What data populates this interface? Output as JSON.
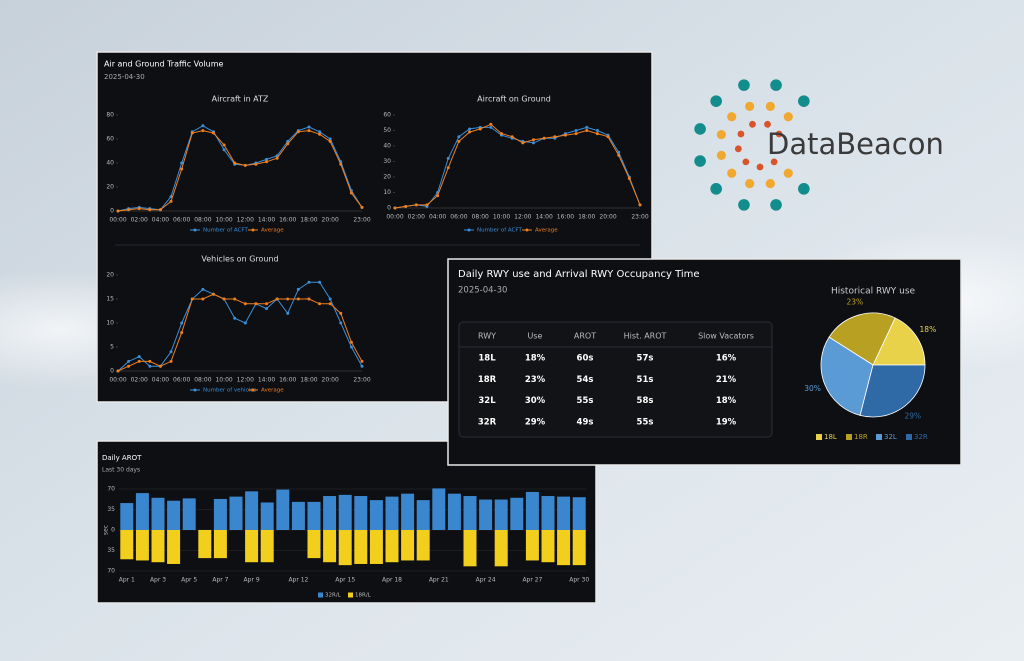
{
  "logo": {
    "text": "DataBeacon"
  },
  "traffic_panel": {
    "title": "Air and Ground Traffic Volume",
    "date": "2025-04-30"
  },
  "rwy_panel": {
    "title": "Daily RWY use and Arrival RWY Occupancy Time",
    "date": "2025-04-30",
    "table": {
      "columns": [
        "RWY",
        "Use",
        "AROT",
        "Hist. AROT",
        "Slow Vacators"
      ],
      "rows": [
        [
          "18L",
          "18%",
          "60s",
          "57s",
          "16%"
        ],
        [
          "18R",
          "23%",
          "54s",
          "51s",
          "21%"
        ],
        [
          "32L",
          "30%",
          "55s",
          "58s",
          "18%"
        ],
        [
          "32R",
          "29%",
          "49s",
          "55s",
          "19%"
        ]
      ]
    }
  },
  "arot_panel": {
    "title": "Daily AROT",
    "subtitle": "Last 30 days"
  },
  "chart_data": [
    {
      "type": "line",
      "title": "Aircraft in ATZ",
      "categories": [
        "00:00",
        null,
        "02:00",
        null,
        "04:00",
        null,
        "06:00",
        null,
        "08:00",
        null,
        "10:00",
        null,
        "12:00",
        null,
        "14:00",
        null,
        "16:00",
        null,
        "18:00",
        null,
        "20:00",
        null,
        null,
        "23:00"
      ],
      "series": [
        {
          "name": "Number of ACFT",
          "color": "#3b8fd9",
          "values": [
            0,
            2,
            3,
            2,
            1,
            12,
            40,
            66,
            71,
            66,
            51,
            39,
            38,
            40,
            43,
            46,
            58,
            67,
            70,
            66,
            60,
            41,
            17,
            3
          ]
        },
        {
          "name": "Average",
          "color": "#f07f1e",
          "values": [
            0,
            1,
            2,
            1,
            1,
            8,
            35,
            65,
            67,
            65,
            55,
            40,
            38,
            39,
            41,
            44,
            56,
            66,
            67,
            64,
            58,
            39,
            15,
            3
          ]
        }
      ],
      "ylim": [
        0,
        80
      ],
      "yticks": [
        0,
        20,
        40,
        60,
        80
      ]
    },
    {
      "type": "line",
      "title": "Aircraft on Ground",
      "categories": [
        "00:00",
        null,
        "02:00",
        null,
        "04:00",
        null,
        "06:00",
        null,
        "08:00",
        null,
        "10:00",
        null,
        "12:00",
        null,
        "14:00",
        null,
        "16:00",
        null,
        "18:00",
        null,
        "20:00",
        null,
        null,
        "23:00"
      ],
      "series": [
        {
          "name": "Number of ACFT",
          "color": "#3b8fd9",
          "values": [
            0,
            1,
            2,
            1,
            10,
            32,
            46,
            51,
            52,
            52,
            47,
            45,
            43,
            42,
            45,
            45,
            48,
            50,
            52,
            50,
            47,
            36,
            20,
            2
          ]
        },
        {
          "name": "Average",
          "color": "#f07f1e",
          "values": [
            0,
            1,
            2,
            2,
            8,
            26,
            43,
            49,
            51,
            54,
            48,
            46,
            42,
            44,
            45,
            46,
            47,
            48,
            50,
            48,
            46,
            34,
            19,
            2
          ]
        }
      ],
      "ylim": [
        0,
        60
      ],
      "yticks": [
        0,
        10,
        20,
        30,
        40,
        50,
        60
      ]
    },
    {
      "type": "line",
      "title": "Vehicles on Ground",
      "categories": [
        "00:00",
        null,
        "02:00",
        null,
        "04:00",
        null,
        "06:00",
        null,
        "08:00",
        null,
        "10:00",
        null,
        "12:00",
        null,
        "14:00",
        null,
        "16:00",
        null,
        "18:00",
        null,
        "20:00",
        null,
        null,
        "23:00"
      ],
      "series": [
        {
          "name": "Number of vehicles",
          "color": "#3b8fd9",
          "values": [
            0,
            2,
            3,
            1,
            1,
            4,
            10,
            15,
            17,
            16,
            15,
            11,
            10,
            14,
            13,
            15,
            12,
            17,
            18.5,
            18.5,
            15,
            10,
            5,
            1
          ]
        },
        {
          "name": "Average",
          "color": "#f07f1e",
          "values": [
            0,
            1,
            2,
            2,
            1,
            2,
            8,
            15,
            15,
            16,
            15,
            15,
            14,
            14,
            14,
            15,
            15,
            15,
            15,
            14,
            14,
            12,
            6,
            2
          ]
        }
      ],
      "ylim": [
        0,
        20
      ],
      "yticks": [
        0,
        5,
        10,
        15,
        20
      ]
    },
    {
      "type": "pie",
      "title": "Historical RWY use",
      "categories": [
        "18L",
        "18R",
        "32L",
        "32R"
      ],
      "values": [
        18,
        23,
        30,
        29
      ],
      "value_labels": [
        "18%",
        "23%",
        "30%",
        "29%"
      ],
      "colors": [
        "#e8d24a",
        "#b8a023",
        "#5b9bd5",
        "#2f6aa6"
      ]
    },
    {
      "type": "diverging_bar",
      "ylabel": "sec",
      "categories": [
        "Apr 1",
        null,
        "Apr 3",
        null,
        "Apr 5",
        null,
        "Apr 7",
        null,
        "Apr 9",
        null,
        null,
        "Apr 12",
        null,
        null,
        "Apr 15",
        null,
        null,
        "Apr 18",
        null,
        null,
        "Apr 21",
        null,
        null,
        "Apr 24",
        null,
        null,
        "Apr 27",
        null,
        null,
        "Apr 30"
      ],
      "series": [
        {
          "name": "32R/L",
          "color": "#3a87d0",
          "values": [
            46,
            63,
            55,
            50,
            54,
            null,
            53,
            57,
            66,
            47,
            69,
            48,
            48,
            58,
            60,
            58,
            51,
            57,
            62,
            51,
            71,
            62,
            58,
            52,
            52,
            55,
            65,
            58,
            57,
            56
          ]
        },
        {
          "name": "18R/L",
          "color": "#f2cf1d",
          "values": [
            -50,
            -52,
            -55,
            -58,
            null,
            -48,
            -48,
            null,
            -55,
            -55,
            null,
            null,
            -48,
            -55,
            -60,
            -58,
            -58,
            -55,
            -52,
            -52,
            null,
            null,
            -62,
            null,
            -62,
            null,
            -52,
            -55,
            -60,
            -60
          ]
        }
      ],
      "ylim": [
        -70,
        70
      ],
      "yticks": [
        {
          "value": -70,
          "label": "70"
        },
        {
          "value": -35,
          "label": "35"
        },
        0,
        35,
        70
      ]
    }
  ]
}
